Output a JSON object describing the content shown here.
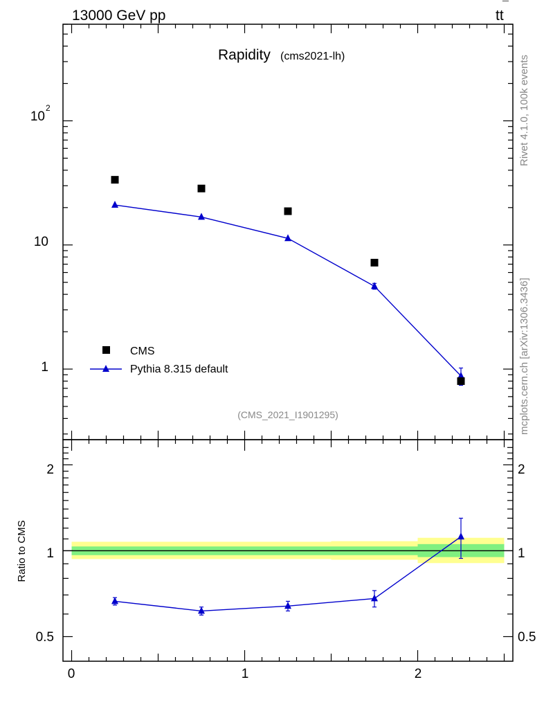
{
  "header": {
    "energy_label": "13000 GeV pp",
    "process_base": "tt",
    "process_bar": "¯"
  },
  "side": {
    "rivet_label": "Rivet 4.1.0,  100k events",
    "mcplots_label": "mcplots.cern.ch [arXiv:1306.3436]"
  },
  "chart_data": [
    {
      "type": "scatter",
      "title": "Rapidity",
      "subtitle": "(cms2021-lh)",
      "watermark": "(CMS_2021_I1901295)",
      "yscale": "log",
      "ylim": [
        0.27,
        600
      ],
      "xlim": [
        -0.05,
        2.55
      ],
      "ytick_labels": [
        "1",
        "10",
        "10",
        "2"
      ],
      "ytick_values": [
        1,
        10,
        100
      ],
      "legend_position": "bottom-left",
      "series": [
        {
          "name": "CMS",
          "marker": "square",
          "color": "#000000",
          "x": [
            0.25,
            0.75,
            1.25,
            1.75,
            2.25
          ],
          "y": [
            33.5,
            28.5,
            18.7,
            7.2,
            0.8
          ]
        },
        {
          "name": "Pythia 8.315 default",
          "marker": "triangle",
          "color": "#0000cc",
          "x": [
            0.25,
            0.75,
            1.25,
            1.75,
            2.25
          ],
          "y": [
            21.0,
            16.8,
            11.3,
            4.65,
            0.88
          ],
          "yerr": [
            0.4,
            0.4,
            0.3,
            0.25,
            0.14
          ]
        }
      ]
    },
    {
      "type": "line",
      "ylabel": "Ratio to CMS",
      "yscale": "log",
      "ylim": [
        0.41,
        2.45
      ],
      "xlim": [
        -0.05,
        2.55
      ],
      "xtick_labels": [
        "0",
        "1",
        "2"
      ],
      "xtick_values": [
        0,
        1,
        2
      ],
      "ytick_labels": [
        "0.5",
        "1",
        "2"
      ],
      "ytick_values": [
        0.5,
        1,
        2
      ],
      "reference_line": 1.0,
      "bands": {
        "bins": [
          [
            0,
            0.5
          ],
          [
            0.5,
            1.0
          ],
          [
            1.0,
            1.5
          ],
          [
            1.5,
            2.0
          ],
          [
            2.0,
            2.5
          ]
        ],
        "inner_lo": [
          0.965,
          0.965,
          0.965,
          0.965,
          0.95
        ],
        "inner_hi": [
          1.035,
          1.035,
          1.035,
          1.035,
          1.055
        ],
        "outer_lo": [
          0.935,
          0.935,
          0.935,
          0.93,
          0.905
        ],
        "outer_hi": [
          1.075,
          1.075,
          1.075,
          1.08,
          1.11
        ],
        "inner_color": "#80f080",
        "outer_color": "#ffff90"
      },
      "series": [
        {
          "name": "Pythia 8.315 default",
          "color": "#0000cc",
          "x": [
            0.25,
            0.75,
            1.25,
            1.75,
            2.25
          ],
          "y": [
            0.665,
            0.615,
            0.64,
            0.68,
            1.12
          ],
          "yerr_lo": [
            0.02,
            0.02,
            0.025,
            0.045,
            0.18
          ],
          "yerr_hi": [
            0.02,
            0.02,
            0.025,
            0.045,
            0.18
          ]
        }
      ]
    }
  ]
}
